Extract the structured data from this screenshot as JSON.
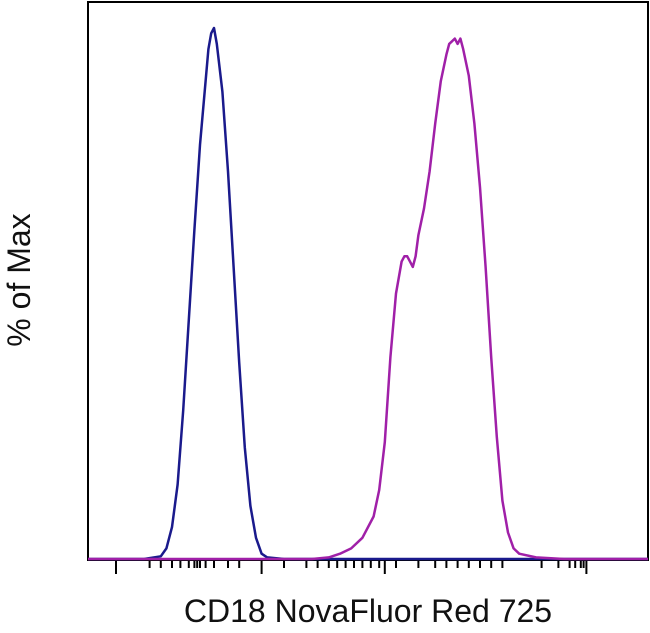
{
  "chart_data": {
    "type": "line",
    "title": "",
    "xlabel": "CD18 NovaFluor Red 725",
    "ylabel": "% of Max",
    "x_scale": "log",
    "ylim": [
      0,
      100
    ],
    "grid": false,
    "legend": "none",
    "series": [
      {
        "color": "#1a1a8c",
        "points": [
          [
            0.0,
            0
          ],
          [
            0.05,
            0
          ],
          [
            0.1,
            0
          ],
          [
            0.13,
            0.5
          ],
          [
            0.14,
            2
          ],
          [
            0.15,
            6
          ],
          [
            0.16,
            14
          ],
          [
            0.17,
            28
          ],
          [
            0.18,
            45
          ],
          [
            0.19,
            62
          ],
          [
            0.2,
            78
          ],
          [
            0.21,
            90
          ],
          [
            0.215,
            96
          ],
          [
            0.22,
            99
          ],
          [
            0.225,
            100
          ],
          [
            0.23,
            97
          ],
          [
            0.24,
            88
          ],
          [
            0.25,
            73
          ],
          [
            0.26,
            55
          ],
          [
            0.27,
            37
          ],
          [
            0.28,
            21
          ],
          [
            0.29,
            10
          ],
          [
            0.3,
            4
          ],
          [
            0.31,
            1
          ],
          [
            0.32,
            0.3
          ],
          [
            0.35,
            0
          ],
          [
            1.0,
            0
          ]
        ]
      },
      {
        "color": "#a020a8",
        "points": [
          [
            0.0,
            0
          ],
          [
            0.4,
            0
          ],
          [
            0.43,
            0.3
          ],
          [
            0.45,
            1
          ],
          [
            0.47,
            2
          ],
          [
            0.49,
            4
          ],
          [
            0.51,
            8
          ],
          [
            0.52,
            13
          ],
          [
            0.53,
            22
          ],
          [
            0.54,
            38
          ],
          [
            0.55,
            50
          ],
          [
            0.56,
            56
          ],
          [
            0.565,
            57
          ],
          [
            0.57,
            57
          ],
          [
            0.575,
            56
          ],
          [
            0.58,
            55
          ],
          [
            0.585,
            57
          ],
          [
            0.59,
            61
          ],
          [
            0.6,
            66
          ],
          [
            0.61,
            73
          ],
          [
            0.62,
            82
          ],
          [
            0.63,
            90
          ],
          [
            0.64,
            95
          ],
          [
            0.645,
            97
          ],
          [
            0.65,
            97.5
          ],
          [
            0.655,
            98
          ],
          [
            0.66,
            97
          ],
          [
            0.665,
            98
          ],
          [
            0.67,
            96
          ],
          [
            0.68,
            91
          ],
          [
            0.69,
            82
          ],
          [
            0.7,
            70
          ],
          [
            0.71,
            55
          ],
          [
            0.72,
            38
          ],
          [
            0.73,
            23
          ],
          [
            0.74,
            11
          ],
          [
            0.75,
            5
          ],
          [
            0.76,
            2
          ],
          [
            0.77,
            1
          ],
          [
            0.8,
            0.3
          ],
          [
            0.85,
            0
          ],
          [
            1.0,
            0
          ]
        ]
      }
    ]
  }
}
